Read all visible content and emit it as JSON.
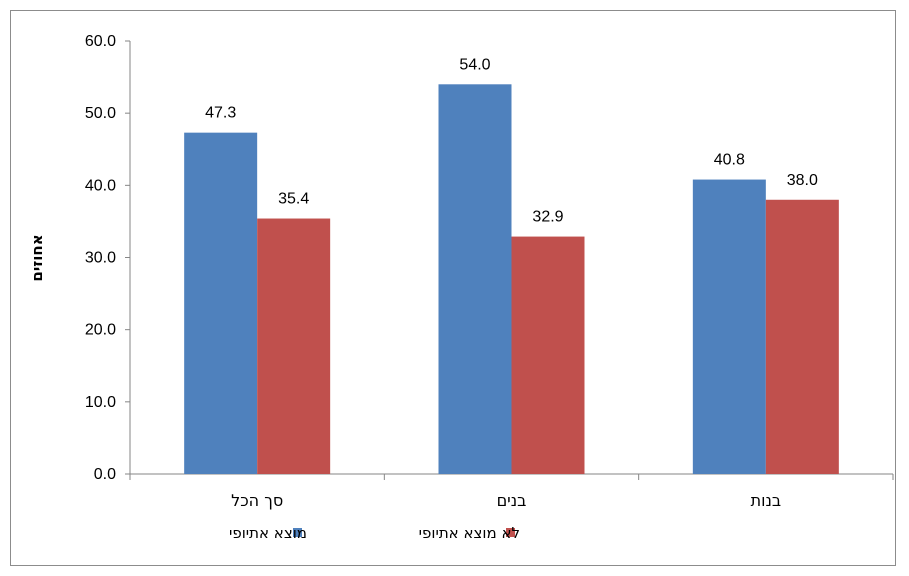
{
  "chart_data": {
    "type": "bar",
    "categories": [
      "סך הכל",
      "בנים",
      "בנות"
    ],
    "series": [
      {
        "name": "מוצא אתיופי",
        "values": [
          47.3,
          54.0,
          40.8
        ],
        "color": "#4f81bd"
      },
      {
        "name": "לא מוצא אתיופי",
        "values": [
          35.4,
          32.9,
          38.0
        ],
        "color": "#c0504d"
      }
    ],
    "ylabel": "אחוזים",
    "xlabel": "",
    "title": "",
    "ylim": [
      0,
      60
    ],
    "yticks": [
      "0.0",
      "10.0",
      "20.0",
      "30.0",
      "40.0",
      "50.0",
      "60.0"
    ],
    "grid": false,
    "legend_position": "bottom"
  }
}
